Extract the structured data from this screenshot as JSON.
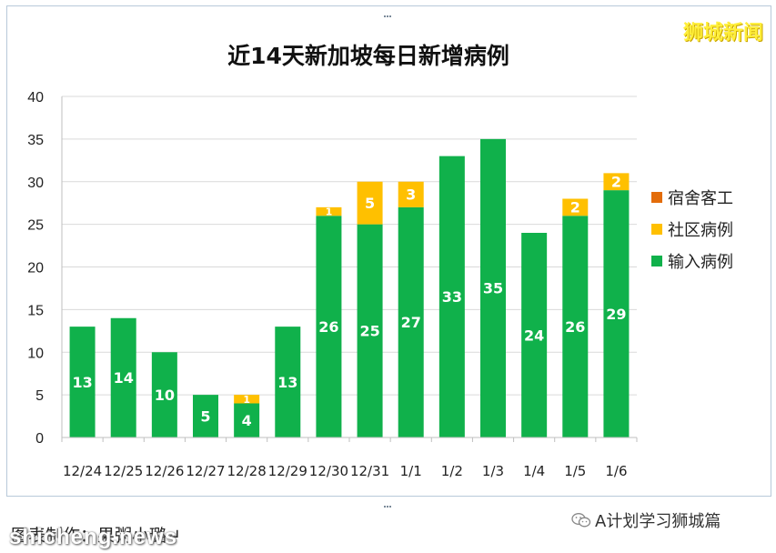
{
  "watermark_brand": "狮城新闻",
  "caption": "图表制作：果粥小璐↵",
  "source_watermark": "shicheng.news",
  "wechat_account": "A计划学习狮城篇",
  "colors": {
    "imported": "#10b14b",
    "community": "#ffc000",
    "dormitory": "#e36c0a",
    "brand": "#ffef3a"
  },
  "chart_data": {
    "type": "bar",
    "stacked": true,
    "title": "近14天新加坡每日新增病例",
    "categories": [
      "12/24",
      "12/25",
      "12/26",
      "12/27",
      "12/28",
      "12/29",
      "12/30",
      "12/31",
      "1/1",
      "1/2",
      "1/3",
      "1/4",
      "1/5",
      "1/6"
    ],
    "series": [
      {
        "name": "输入病例",
        "color": "#10b14b",
        "values": [
          13,
          14,
          10,
          5,
          4,
          13,
          26,
          25,
          27,
          33,
          35,
          24,
          26,
          29
        ]
      },
      {
        "name": "社区病例",
        "color": "#ffc000",
        "values": [
          0,
          0,
          0,
          0,
          1,
          0,
          1,
          5,
          3,
          0,
          0,
          0,
          2,
          2
        ]
      },
      {
        "name": "宿舍客工",
        "color": "#e36c0a",
        "values": [
          0,
          0,
          0,
          0,
          0,
          0,
          0,
          0,
          0,
          0,
          0,
          0,
          0,
          0
        ]
      }
    ],
    "legend_order": [
      "宿舍客工",
      "社区病例",
      "输入病例"
    ],
    "yticks": [
      0,
      5,
      10,
      15,
      20,
      25,
      30,
      35,
      40
    ],
    "ylim": [
      0,
      40
    ],
    "grid": true,
    "legend_position": "right"
  }
}
